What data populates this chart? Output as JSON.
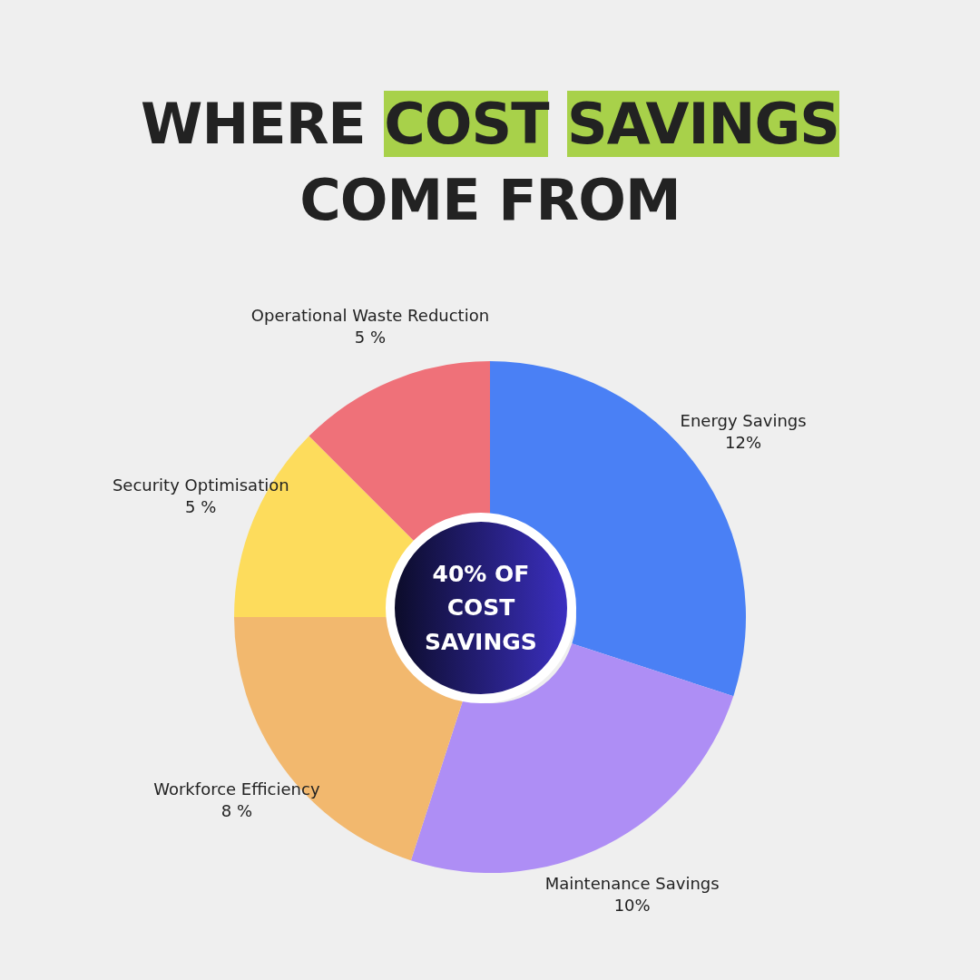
{
  "chart_data": {
    "type": "donut",
    "title": "WHERE COST SAVINGS COME FROM",
    "categories": [
      "Energy Savings",
      "Maintenance Savings",
      "Workforce Efficiency",
      "Security Optimisation",
      "Operational Waste Reduction"
    ],
    "values": [
      12,
      10,
      8,
      5,
      5
    ],
    "value_labels": [
      "12%",
      "10%",
      "8 %",
      "5 %",
      "5 %"
    ],
    "colors": [
      "#4a80f5",
      "#ae8ef5",
      "#f2b86e",
      "#fddc5c",
      "#ef7179"
    ],
    "annotations": [
      "40% OF COST SAVINGS"
    ]
  }
}
